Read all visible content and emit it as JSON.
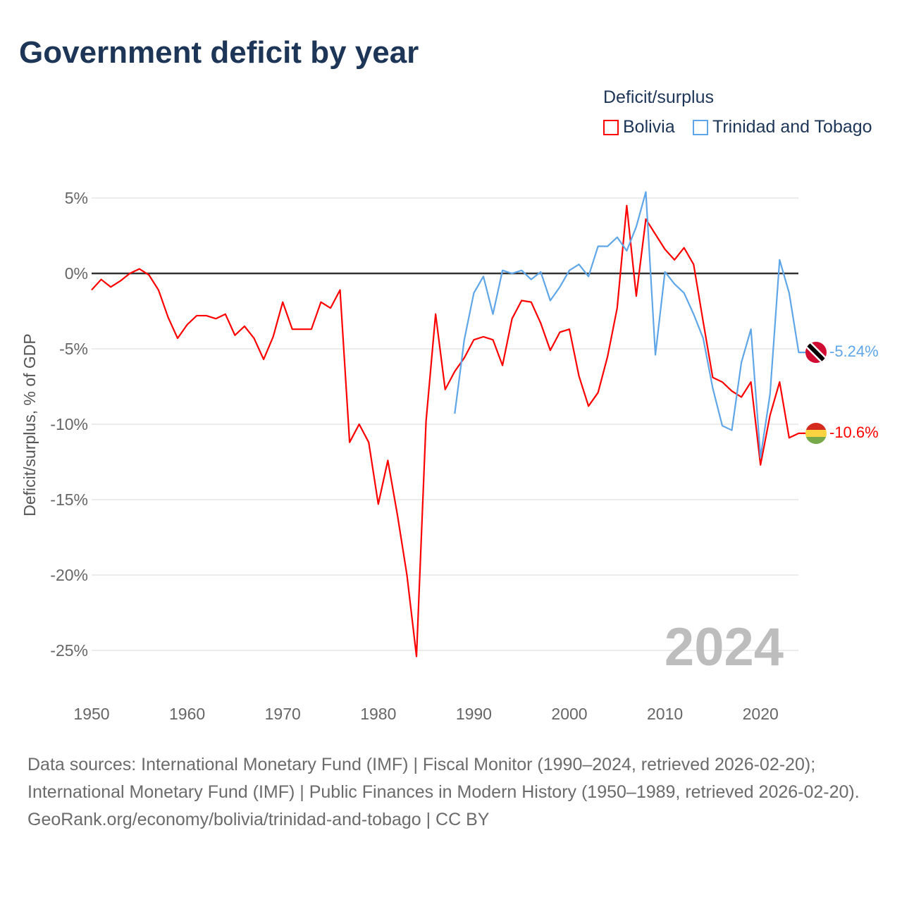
{
  "title": "Government deficit by year",
  "footer": {
    "sources": "Data sources: International Monetary Fund (IMF) | Fiscal Monitor (1990–2024, retrieved 2026-02-20); International Monetary Fund (IMF) | Public Finances in Modern History (1950–1989, retrieved 2026-02-20).",
    "credit": "GeoRank.org/economy/bolivia/trinidad-and-tobago | CC BY"
  },
  "chart_data": {
    "type": "line",
    "title": "Government deficit by year",
    "ylabel": "Deficit/surplus, % of GDP",
    "xlabel": "",
    "legend_title": "Deficit/surplus",
    "legend_position": "top-right",
    "year_watermark": "2024",
    "xlim": [
      1950,
      2024
    ],
    "ylim": [
      -27,
      6
    ],
    "xticks": [
      1950,
      1960,
      1970,
      1980,
      1990,
      2000,
      2010,
      2020
    ],
    "yticks": [
      5,
      0,
      -5,
      -10,
      -15,
      -20,
      -25
    ],
    "ytick_labels": [
      "5%",
      "0%",
      "-5%",
      "-10%",
      "-15%",
      "-20%",
      "-25%"
    ],
    "series": [
      {
        "name": "Bolivia",
        "color": "#ff0000",
        "end_label": "-10.6%",
        "start": 1950,
        "values": [
          -1.1,
          -0.4,
          -0.9,
          -0.5,
          0.0,
          0.3,
          -0.1,
          -1.1,
          -2.9,
          -4.3,
          -3.4,
          -2.8,
          -2.8,
          -3.0,
          -2.7,
          -4.1,
          -3.5,
          -4.3,
          -5.7,
          -4.2,
          -1.9,
          -3.7,
          -3.7,
          -3.7,
          -1.9,
          -2.3,
          -1.1,
          -11.2,
          -10.0,
          -11.2,
          -15.3,
          -12.4,
          -16.0,
          -20.0,
          -25.4,
          -9.8,
          -2.7,
          -7.7,
          -6.5,
          -5.6,
          -4.4,
          -4.2,
          -4.4,
          -6.1,
          -3.0,
          -1.8,
          -1.9,
          -3.3,
          -5.1,
          -3.9,
          -3.7,
          -6.8,
          -8.8,
          -7.9,
          -5.5,
          -2.3,
          4.5,
          -1.5,
          3.6,
          2.6,
          1.6,
          0.9,
          1.7,
          0.6,
          -3.2,
          -6.9,
          -7.2,
          -7.8,
          -8.2,
          -7.2,
          -12.7,
          -9.4,
          -7.2,
          -10.9,
          -10.6
        ]
      },
      {
        "name": "Trinidad and Tobago",
        "color": "#5fa6e8",
        "end_label": "-5.24%",
        "start": 1988,
        "values": [
          -9.3,
          -4.4,
          -1.3,
          -0.2,
          -2.7,
          0.2,
          0.0,
          0.2,
          -0.4,
          0.1,
          -1.8,
          -0.9,
          0.2,
          0.6,
          -0.2,
          1.8,
          1.8,
          2.4,
          1.5,
          3.1,
          5.4,
          -5.4,
          0.1,
          -0.7,
          -1.3,
          -2.7,
          -4.3,
          -7.6,
          -10.1,
          -10.4,
          -5.9,
          -3.7,
          -12.2,
          -8.0,
          0.9,
          -1.3,
          -5.24
        ]
      }
    ]
  }
}
